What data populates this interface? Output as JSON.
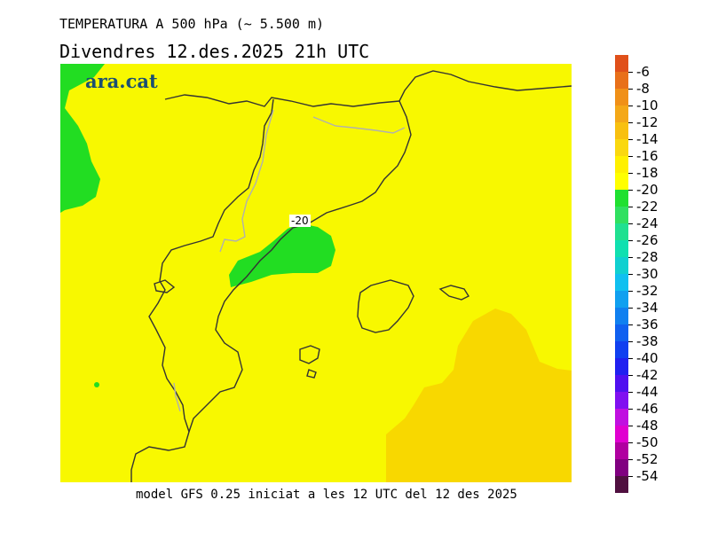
{
  "title_line1": "TEMPERATURA A 500 hPa (~ 5.500 m)",
  "title_line2": "Divendres  12.des.2025 21h UTC",
  "logo": "ara.cat",
  "contour_label": "-20",
  "footer": "model GFS 0.25 iniciat a les 12 UTC del 12 des 2025",
  "colorbar": {
    "labels": [
      "-6",
      "-8",
      "-10",
      "-12",
      "-14",
      "-16",
      "-18",
      "-20",
      "-22",
      "-24",
      "-26",
      "-28",
      "-30",
      "-32",
      "-34",
      "-36",
      "-38",
      "-40",
      "-42",
      "-44",
      "-46",
      "-48",
      "-50",
      "-52",
      "-54"
    ],
    "colors": [
      "#e0501a",
      "#e8701a",
      "#f09018",
      "#f4a818",
      "#f8c010",
      "#fad810",
      "#fff000",
      "#ffff00",
      "#20e030",
      "#30e060",
      "#20e090",
      "#10e0b0",
      "#10d0d0",
      "#10c0f0",
      "#10a0f0",
      "#1080f0",
      "#1060f0",
      "#1040f0",
      "#2020f0",
      "#5010f0",
      "#8010f0",
      "#c010e0",
      "#e000d0",
      "#b000a0",
      "#800080",
      "#501040"
    ]
  },
  "map": {
    "field_colors": {
      "minus18_minus20": "#f8f800",
      "minus16_minus18": "#f8d800",
      "minus20_minus22": "#22dd22"
    }
  }
}
